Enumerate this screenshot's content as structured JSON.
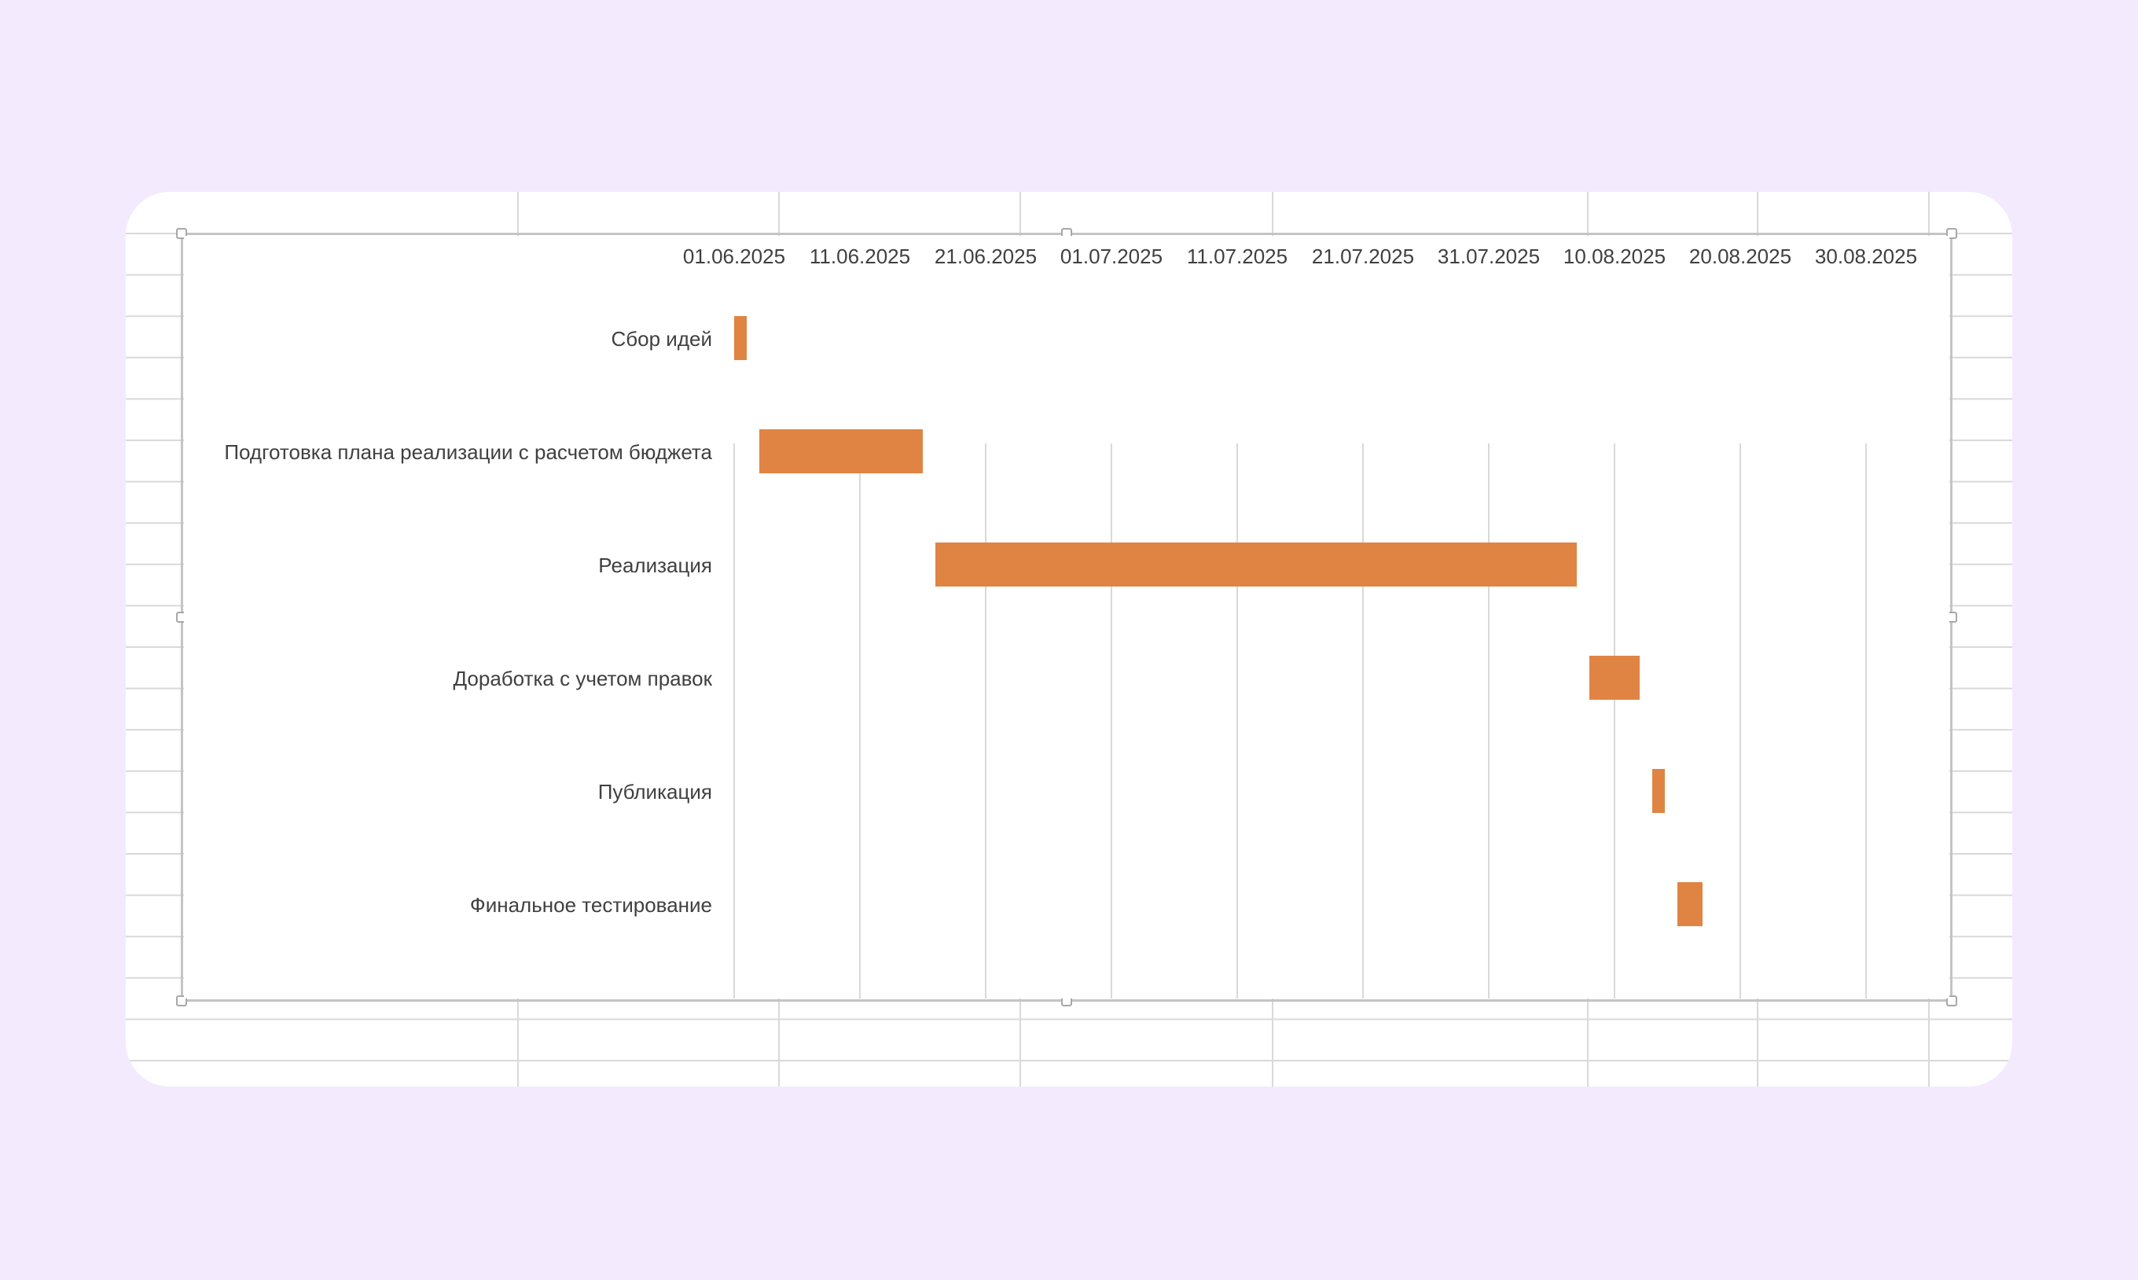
{
  "colors": {
    "page_background": "#f3eafd",
    "sheet_background": "#ffffff",
    "sheet_gridlines": "#d9d9d9",
    "chart_gridlines": "#d9d9d9",
    "bar_color": "#e08444",
    "label_text": "#404040",
    "frame_border": "#c4c4c4"
  },
  "chart_data": {
    "type": "bar",
    "orientation": "horizontal",
    "style": "gantt",
    "title": "",
    "xlabel": "",
    "ylabel": "",
    "x_axis": {
      "position": "top",
      "format": "dd.mm.yyyy",
      "ticks": [
        "01.06.2025",
        "11.06.2025",
        "21.06.2025",
        "01.07.2025",
        "11.07.2025",
        "21.07.2025",
        "31.07.2025",
        "10.08.2025",
        "20.08.2025",
        "30.08.2025"
      ],
      "xlim": [
        "2025-06-01",
        "2025-08-30"
      ]
    },
    "grid": "vertical",
    "legend": "none",
    "categories": [
      "Сбор идей",
      "Подготовка плана реализации с расчетом бюджета",
      "Реализация",
      "Доработка с учетом правок",
      "Публикация",
      "Финальное тестирование"
    ],
    "tasks": [
      {
        "name": "Сбор идей",
        "start": "2025-06-01",
        "end": "2025-06-02"
      },
      {
        "name": "Подготовка плана реализации с расчетом бюджета",
        "start": "2025-06-03",
        "end": "2025-06-16"
      },
      {
        "name": "Реализация",
        "start": "2025-06-17",
        "end": "2025-08-07"
      },
      {
        "name": "Доработка с учетом правок",
        "start": "2025-08-08",
        "end": "2025-08-12"
      },
      {
        "name": "Публикация",
        "start": "2025-08-13",
        "end": "2025-08-14"
      },
      {
        "name": "Финальное тестирование",
        "start": "2025-08-15",
        "end": "2025-08-17"
      }
    ]
  }
}
